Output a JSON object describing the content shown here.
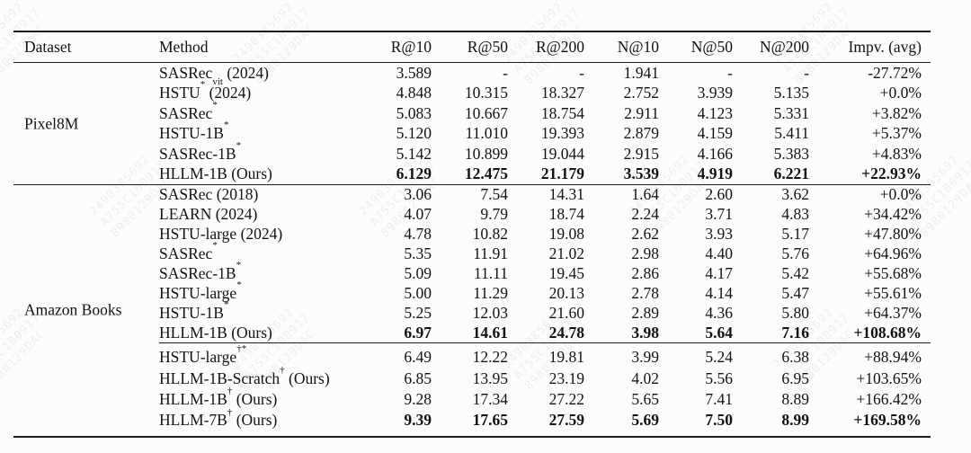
{
  "watermark": {
    "lines": [
      "2490385692",
      "A755C1B0917",
      "8980129DAC"
    ]
  },
  "table": {
    "columns": [
      "Dataset",
      "Method",
      "R@10",
      "R@50",
      "R@200",
      "N@10",
      "N@50",
      "N@200",
      "Impv. (avg)"
    ],
    "sections": [
      {
        "dataset": "Pixel8M",
        "groups": [
          {
            "rows": [
              {
                "method": {
                  "base": "SASRec",
                  "sub": "vit",
                  "suffix": " (2024)"
                },
                "bold": false,
                "values": [
                  "3.589",
                  "-",
                  "-",
                  "1.941",
                  "-",
                  "-",
                  "-27.72%"
                ]
              },
              {
                "method": {
                  "base": "HSTU",
                  "sup": "*",
                  "suffix": " (2024)"
                },
                "bold": false,
                "values": [
                  "4.848",
                  "10.315",
                  "18.327",
                  "2.752",
                  "3.939",
                  "5.135",
                  "+0.0%"
                ]
              },
              {
                "method": {
                  "base": "SASRec",
                  "sup": "*"
                },
                "bold": false,
                "values": [
                  "5.083",
                  "10.667",
                  "18.754",
                  "2.911",
                  "4.123",
                  "5.331",
                  "+3.82%"
                ]
              },
              {
                "method": {
                  "base": "HSTU-1B",
                  "sup": "*"
                },
                "bold": false,
                "values": [
                  "5.120",
                  "11.010",
                  "19.393",
                  "2.879",
                  "4.159",
                  "5.411",
                  "+5.37%"
                ]
              },
              {
                "method": {
                  "base": "SASRec-1B",
                  "sup": "*"
                },
                "bold": false,
                "values": [
                  "5.142",
                  "10.899",
                  "19.044",
                  "2.915",
                  "4.166",
                  "5.383",
                  "+4.83%"
                ]
              },
              {
                "method": {
                  "base": "HLLM-1B",
                  "suffix": " (Ours)"
                },
                "bold": true,
                "values": [
                  "6.129",
                  "12.475",
                  "21.179",
                  "3.539",
                  "4.919",
                  "6.221",
                  "+22.93%"
                ]
              }
            ]
          }
        ]
      },
      {
        "dataset": "Amazon Books",
        "groups": [
          {
            "rows": [
              {
                "method": {
                  "base": "SASRec",
                  "suffix": " (2018)"
                },
                "bold": false,
                "values": [
                  "3.06",
                  "7.54",
                  "14.31",
                  "1.64",
                  "2.60",
                  "3.62",
                  "+0.0%"
                ]
              },
              {
                "method": {
                  "base": "LEARN",
                  "suffix": " (2024)"
                },
                "bold": false,
                "values": [
                  "4.07",
                  "9.79",
                  "18.74",
                  "2.24",
                  "3.71",
                  "4.83",
                  "+34.42%"
                ]
              },
              {
                "method": {
                  "base": "HSTU-large",
                  "suffix": " (2024)"
                },
                "bold": false,
                "values": [
                  "4.78",
                  "10.82",
                  "19.08",
                  "2.62",
                  "3.93",
                  "5.17",
                  "+47.80%"
                ]
              },
              {
                "method": {
                  "base": "SASRec",
                  "sup": "*"
                },
                "bold": false,
                "values": [
                  "5.35",
                  "11.91",
                  "21.02",
                  "2.98",
                  "4.40",
                  "5.76",
                  "+64.96%"
                ]
              },
              {
                "method": {
                  "base": "SASRec-1B",
                  "sup": "*"
                },
                "bold": false,
                "values": [
                  "5.09",
                  "11.11",
                  "19.45",
                  "2.86",
                  "4.17",
                  "5.42",
                  "+55.68%"
                ]
              },
              {
                "method": {
                  "base": "HSTU-large",
                  "sup": "*"
                },
                "bold": false,
                "values": [
                  "5.00",
                  "11.29",
                  "20.13",
                  "2.78",
                  "4.14",
                  "5.47",
                  "+55.61%"
                ]
              },
              {
                "method": {
                  "base": "HSTU-1B",
                  "sup": "*"
                },
                "bold": false,
                "values": [
                  "5.25",
                  "12.03",
                  "21.60",
                  "2.89",
                  "4.36",
                  "5.80",
                  "+64.37%"
                ]
              },
              {
                "method": {
                  "base": "HLLM-1B",
                  "suffix": " (Ours)"
                },
                "bold": true,
                "values": [
                  "6.97",
                  "14.61",
                  "24.78",
                  "3.98",
                  "5.64",
                  "7.16",
                  "+108.68%"
                ]
              }
            ]
          },
          {
            "rows": [
              {
                "method": {
                  "base": "HSTU-large",
                  "sup": "†*"
                },
                "bold": false,
                "values": [
                  "6.49",
                  "12.22",
                  "19.81",
                  "3.99",
                  "5.24",
                  "6.38",
                  "+88.94%"
                ]
              },
              {
                "method": {
                  "base": "HLLM-1B-Scratch",
                  "sup": "†",
                  "suffix": " (Ours)"
                },
                "bold": false,
                "values": [
                  "6.85",
                  "13.95",
                  "23.19",
                  "4.02",
                  "5.56",
                  "6.95",
                  "+103.65%"
                ]
              },
              {
                "method": {
                  "base": "HLLM-1B",
                  "sup": "†",
                  "suffix": " (Ours)"
                },
                "bold": false,
                "values": [
                  "9.28",
                  "17.34",
                  "27.22",
                  "5.65",
                  "7.41",
                  "8.89",
                  "+166.42%"
                ]
              },
              {
                "method": {
                  "base": "HLLM-7B",
                  "sup": "†",
                  "suffix": " (Ours)"
                },
                "bold": true,
                "values": [
                  "9.39",
                  "17.65",
                  "27.59",
                  "5.69",
                  "7.50",
                  "8.99",
                  "+169.58%"
                ]
              }
            ]
          }
        ]
      }
    ]
  }
}
